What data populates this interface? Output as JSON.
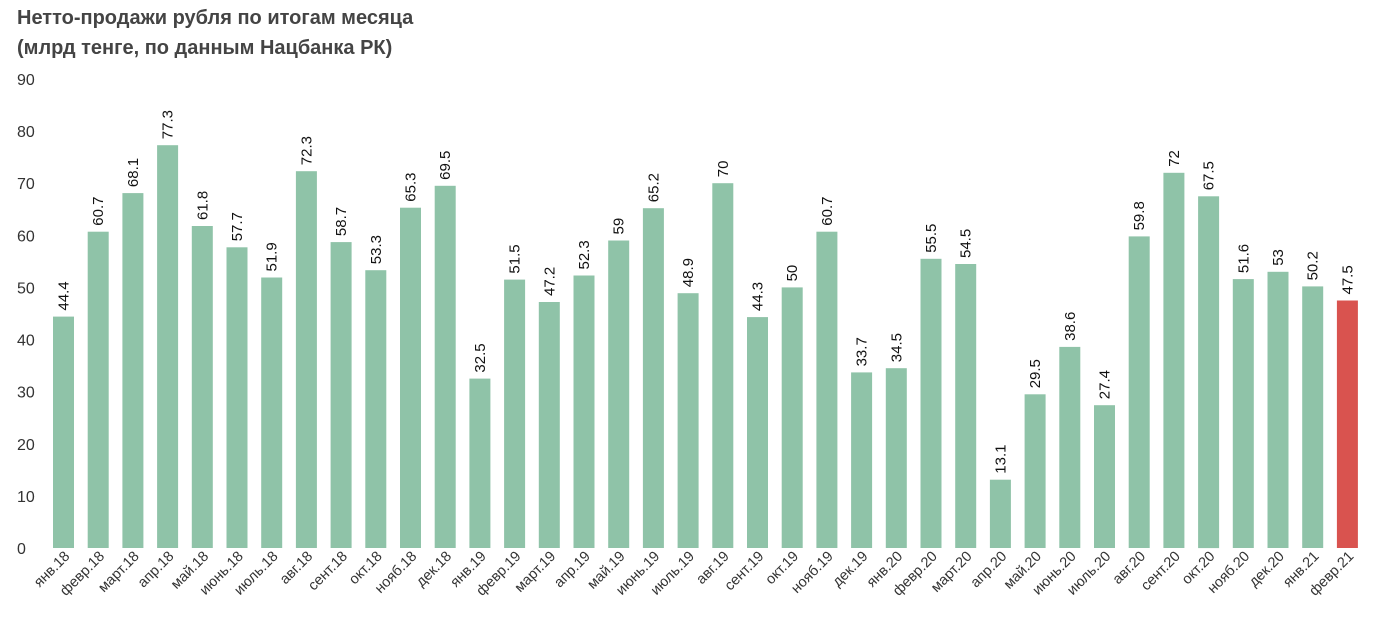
{
  "title_line1": "Нетто-продажи рубля по итогам месяца",
  "title_line2": "(млрд тенге, по данным Нацбанка РК)",
  "colors": {
    "bar": "#8fc3a8",
    "highlight": "#d9534f",
    "text": "#333333",
    "title": "#444444"
  },
  "chart_data": {
    "type": "bar",
    "categories": [
      "янв.18",
      "февр.18",
      "март.18",
      "апр.18",
      "май.18",
      "июнь.18",
      "июль.18",
      "авг.18",
      "сент.18",
      "окт.18",
      "нояб.18",
      "дек.18",
      "янв.19",
      "февр.19",
      "март.19",
      "апр.19",
      "май.19",
      "июнь.19",
      "июль.19",
      "авг.19",
      "сент.19",
      "окт.19",
      "нояб.19",
      "дек.19",
      "янв.20",
      "февр.20",
      "март.20",
      "апр.20",
      "май.20",
      "июнь.20",
      "июль.20",
      "авг.20",
      "сент.20",
      "окт.20",
      "нояб.20",
      "дек.20",
      "янв.21",
      "февр.21"
    ],
    "values": [
      44.4,
      60.7,
      68.1,
      77.3,
      61.8,
      57.7,
      51.9,
      72.3,
      58.7,
      53.3,
      65.3,
      69.5,
      32.5,
      51.5,
      47.2,
      52.3,
      59,
      65.2,
      48.9,
      70,
      44.3,
      50,
      60.7,
      33.7,
      34.5,
      55.5,
      54.5,
      13.1,
      29.5,
      38.6,
      27.4,
      59.8,
      72,
      67.5,
      51.6,
      53,
      50.2,
      47.5
    ],
    "highlight_index": 37,
    "ylim": [
      0,
      90
    ],
    "yticks": [
      0,
      10,
      20,
      30,
      40,
      50,
      60,
      70,
      80,
      90
    ],
    "grid": false,
    "legend": "none"
  }
}
